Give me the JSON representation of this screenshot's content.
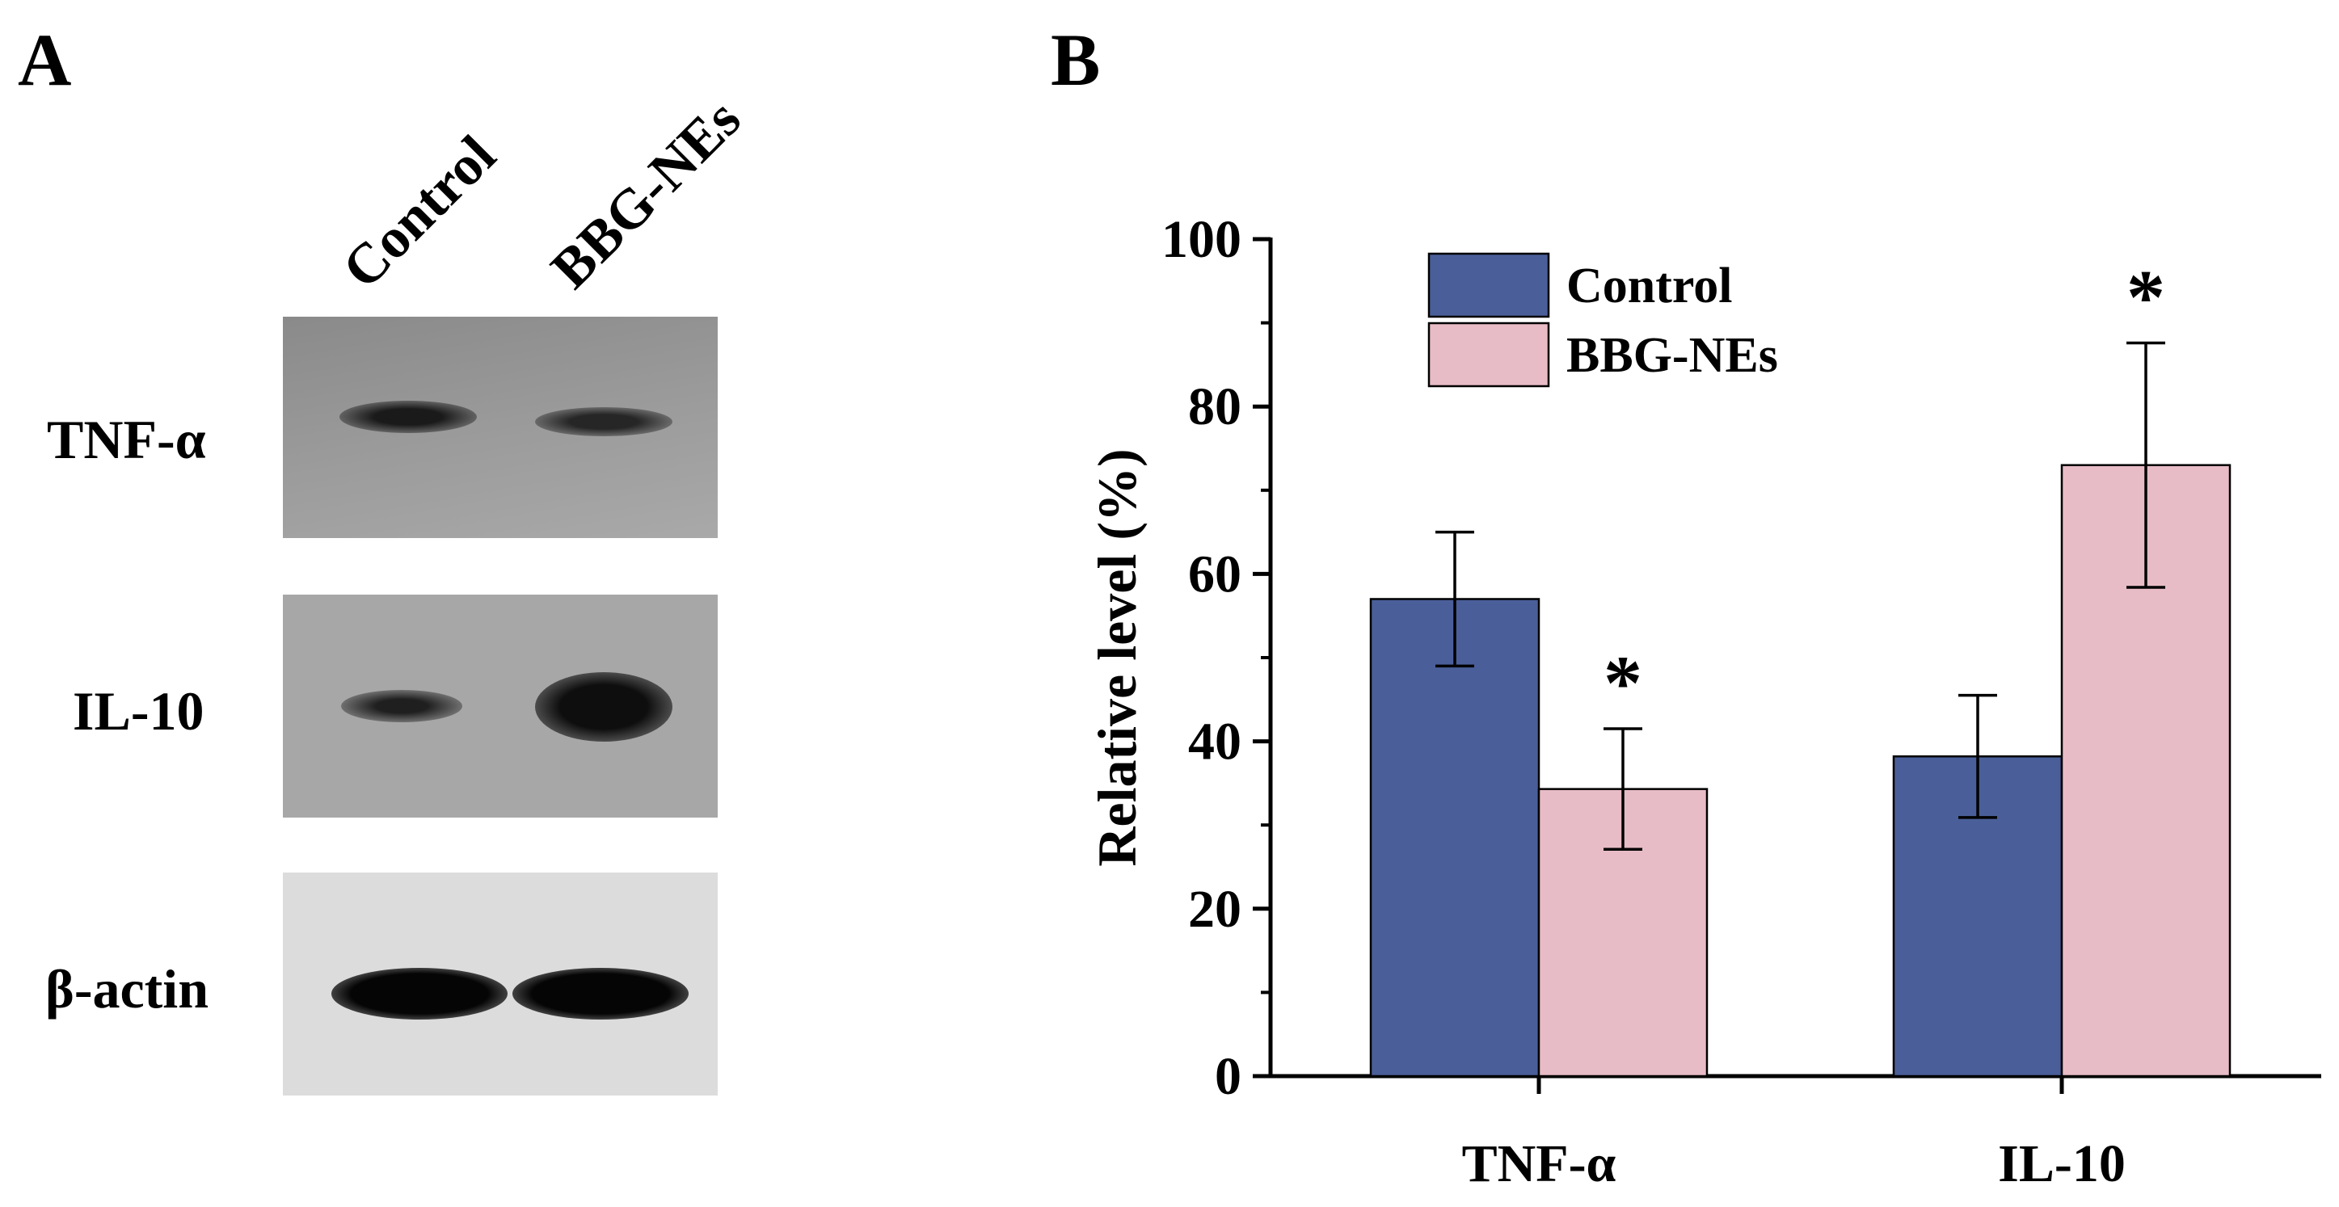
{
  "panel_a": {
    "label": "A",
    "lanes": [
      "Control",
      "BBG-NEs"
    ],
    "rows": [
      {
        "label": "TNF-α",
        "band_intensity": [
          0.85,
          0.75
        ]
      },
      {
        "label": "IL-10",
        "band_intensity": [
          0.6,
          0.95
        ]
      },
      {
        "label": "β-actin",
        "band_intensity": [
          1.0,
          1.0
        ]
      }
    ]
  },
  "panel_b": {
    "label": "B"
  },
  "colors": {
    "control": "#4A5F99",
    "bbg_nes": "#E8BCC6"
  },
  "chart_data": {
    "type": "bar",
    "title": "",
    "xlabel": "",
    "ylabel": "Relative level (%)",
    "ylim": [
      0,
      100
    ],
    "yticks": [
      0,
      20,
      40,
      60,
      80,
      100
    ],
    "categories": [
      "TNF-α",
      "IL-10"
    ],
    "series": [
      {
        "name": "Control",
        "values": [
          57,
          38.2
        ],
        "errors": [
          8,
          7.3
        ],
        "significance": [
          "",
          ""
        ]
      },
      {
        "name": "BBG-NEs",
        "values": [
          34.3,
          73
        ],
        "errors": [
          7.2,
          14.6
        ],
        "significance": [
          "*",
          "*"
        ]
      }
    ],
    "legend_position": "top-left",
    "significance_marker": "*"
  }
}
